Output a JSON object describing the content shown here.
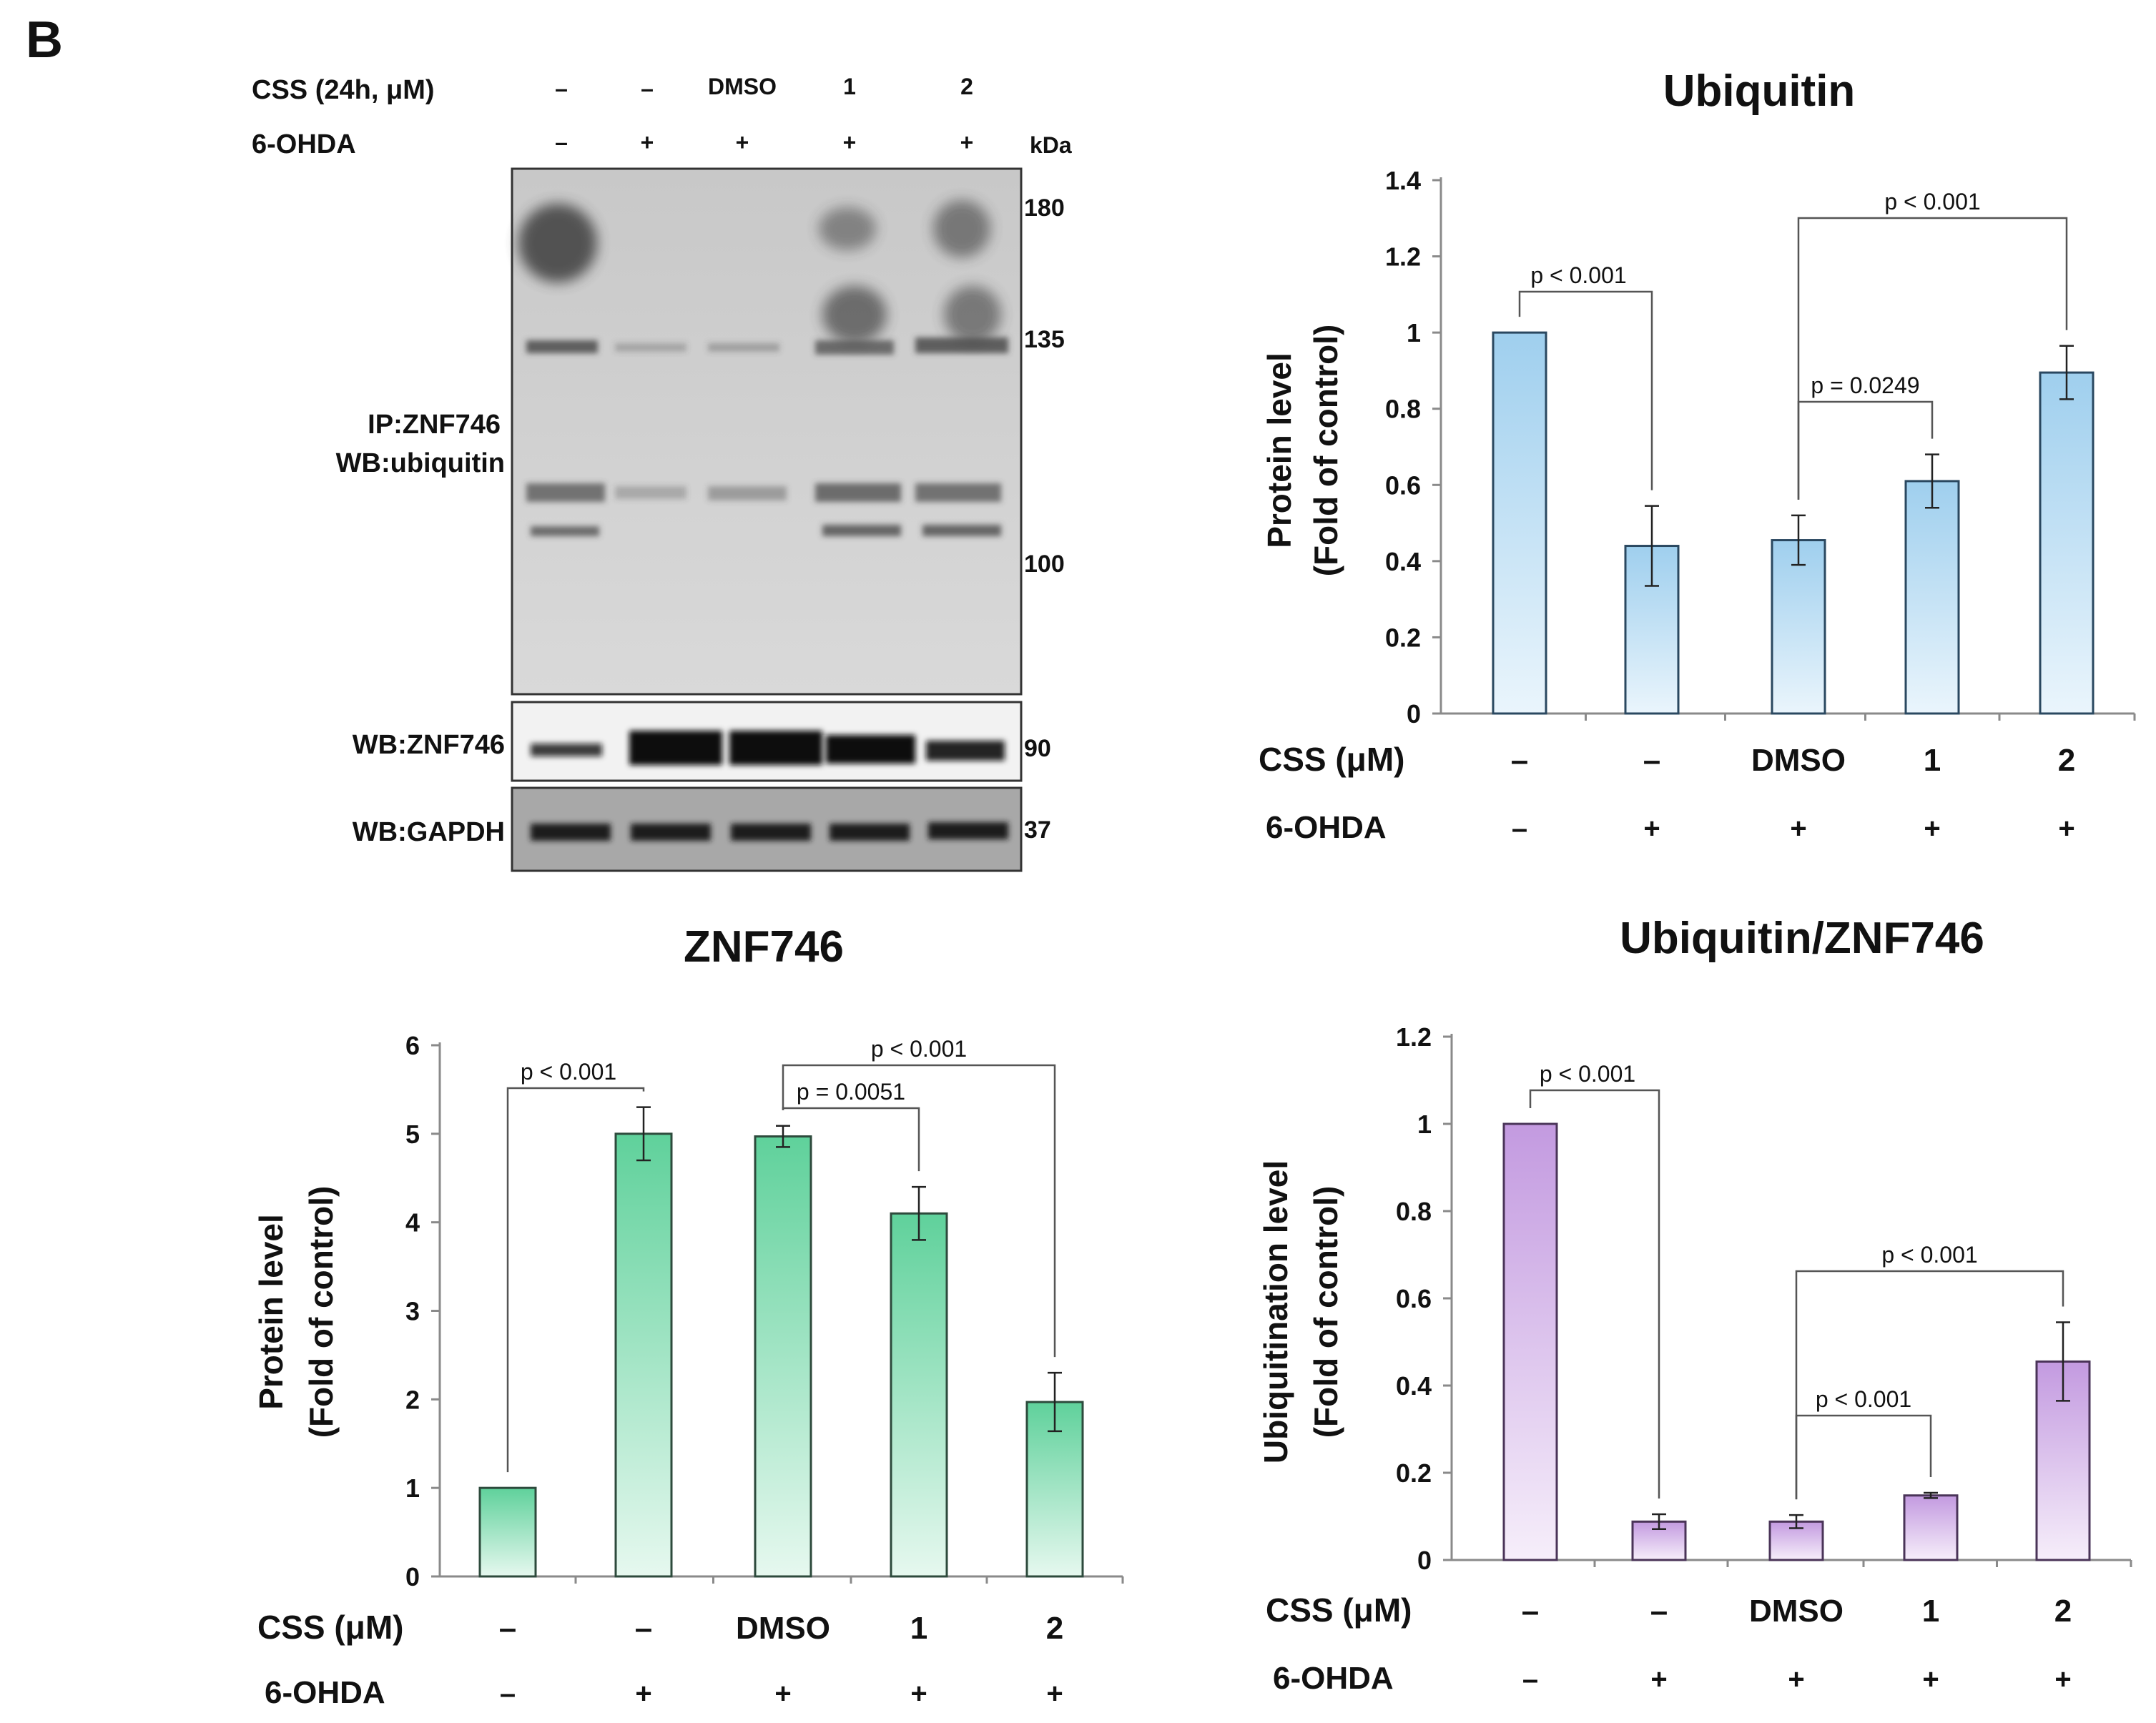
{
  "panel_label": "B",
  "blot": {
    "row1_label": "CSS (24h, μM)",
    "row1_values": [
      "–",
      "–",
      "DMSO",
      "1",
      "2"
    ],
    "row2_label": "6-OHDA",
    "row2_values": [
      "–",
      "+",
      "+",
      "+",
      "+"
    ],
    "unit_label": "kDa",
    "main_label_line1": "IP:ZNF746",
    "main_label_line2": "WB:ubiquitin",
    "main_markers": [
      "180",
      "135",
      "100"
    ],
    "znf_label": "WB:ZNF746",
    "znf_marker": "90",
    "gapdh_label": "WB:GAPDH",
    "gapdh_marker": "37"
  },
  "chart_data": [
    {
      "type": "bar",
      "title": "Ubiquitin",
      "ylabel_line1": "Protein level",
      "ylabel_line2": "(Fold of control)",
      "ylim": [
        0,
        1.4
      ],
      "yticks": [
        "0",
        "0.2",
        "0.4",
        "0.6",
        "0.8",
        "1",
        "1.2",
        "1.4"
      ],
      "values": [
        1.0,
        0.44,
        0.455,
        0.61,
        0.895
      ],
      "errors": [
        0,
        0.105,
        0.065,
        0.07,
        0.07
      ],
      "colors": {
        "top": "#9fcfee",
        "bottom": "#eaf5fc",
        "stroke": "#2a4860"
      },
      "row1_label": "CSS (μM)",
      "row1_values": [
        "–",
        "–",
        "DMSO",
        "1",
        "2"
      ],
      "row2_label": "6-OHDA",
      "row2_values": [
        "–",
        "+",
        "+",
        "+",
        "+"
      ],
      "sig": [
        {
          "from": 0,
          "to": 1,
          "label": "p < 0.001"
        },
        {
          "from": 2,
          "to": 3,
          "label": "p = 0.0249"
        },
        {
          "from": 2,
          "to": 4,
          "label": "p < 0.001"
        }
      ]
    },
    {
      "type": "bar",
      "title": "ZNF746",
      "ylabel_line1": "Protein level",
      "ylabel_line2": "(Fold of control)",
      "ylim": [
        0,
        6
      ],
      "yticks": [
        "0",
        "1",
        "2",
        "3",
        "4",
        "5",
        "6"
      ],
      "values": [
        1.0,
        5.0,
        4.97,
        4.1,
        1.97
      ],
      "errors": [
        0,
        0.3,
        0.12,
        0.3,
        0.33
      ],
      "colors": {
        "top": "#5fd19b",
        "bottom": "#e6f8ef",
        "stroke": "#2d4a3c"
      },
      "row1_label": "CSS (μM)",
      "row1_values": [
        "–",
        "–",
        "DMSO",
        "1",
        "2"
      ],
      "row2_label": "6-OHDA",
      "row2_values": [
        "–",
        "+",
        "+",
        "+",
        "+"
      ],
      "sig": [
        {
          "from": 0,
          "to": 1,
          "label": "p < 0.001"
        },
        {
          "from": 2,
          "to": 3,
          "label": "p = 0.0051"
        },
        {
          "from": 2,
          "to": 4,
          "label": "p < 0.001"
        }
      ]
    },
    {
      "type": "bar",
      "title": "Ubiquitin/ZNF746",
      "ylabel_line1": "Ubiquitination  level",
      "ylabel_line2": "(Fold of control)",
      "ylim": [
        0,
        1.2
      ],
      "yticks": [
        "0",
        "0.2",
        "0.4",
        "0.6",
        "0.8",
        "1",
        "1.2"
      ],
      "values": [
        1.0,
        0.088,
        0.088,
        0.148,
        0.455
      ],
      "errors": [
        0,
        0.017,
        0.015,
        0.006,
        0.09
      ],
      "colors": {
        "top": "#c39ae0",
        "bottom": "#f6eefa",
        "stroke": "#4a3458"
      },
      "row1_label": "CSS (μM)",
      "row1_values": [
        "–",
        "–",
        "DMSO",
        "1",
        "2"
      ],
      "row2_label": "6-OHDA",
      "row2_values": [
        "–",
        "+",
        "+",
        "+",
        "+"
      ],
      "sig": [
        {
          "from": 0,
          "to": 1,
          "label": "p < 0.001"
        },
        {
          "from": 2,
          "to": 3,
          "label": "p < 0.001"
        },
        {
          "from": 2,
          "to": 4,
          "label": "p < 0.001"
        }
      ]
    }
  ]
}
